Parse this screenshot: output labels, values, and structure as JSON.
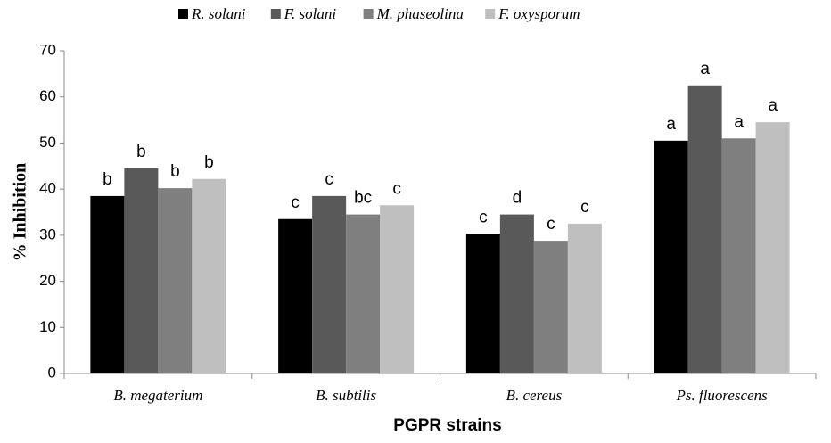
{
  "chart_data": {
    "type": "bar",
    "x_label": "PGPR strains",
    "y_label": "% Inhibition",
    "categories": [
      "B. megaterium",
      "B. subtilis",
      "B. cereus",
      "Ps. fluorescens"
    ],
    "series": [
      {
        "name": "R. solani",
        "color": "#000000",
        "values": [
          38.5,
          33.5,
          30.3,
          50.5
        ],
        "letters": [
          "b",
          "c",
          "c",
          "a"
        ]
      },
      {
        "name": "F. solani",
        "color": "#595959",
        "values": [
          44.5,
          38.5,
          34.5,
          62.5
        ],
        "letters": [
          "b",
          "c",
          "d",
          "a"
        ]
      },
      {
        "name": "M. phaseolina",
        "color": "#7f7f7f",
        "values": [
          40.2,
          34.5,
          28.8,
          51
        ],
        "letters": [
          "b",
          "bc",
          "c",
          "a"
        ]
      },
      {
        "name": "F. oxysporum",
        "color": "#bfbfbf",
        "values": [
          42.2,
          36.5,
          32.5,
          54.5
        ],
        "letters": [
          "b",
          "c",
          "c",
          "a"
        ]
      }
    ],
    "ylim": [
      0,
      70
    ],
    "yticks": [
      0,
      10,
      20,
      30,
      40,
      50,
      60,
      70
    ],
    "grid": false,
    "legend": "top"
  }
}
